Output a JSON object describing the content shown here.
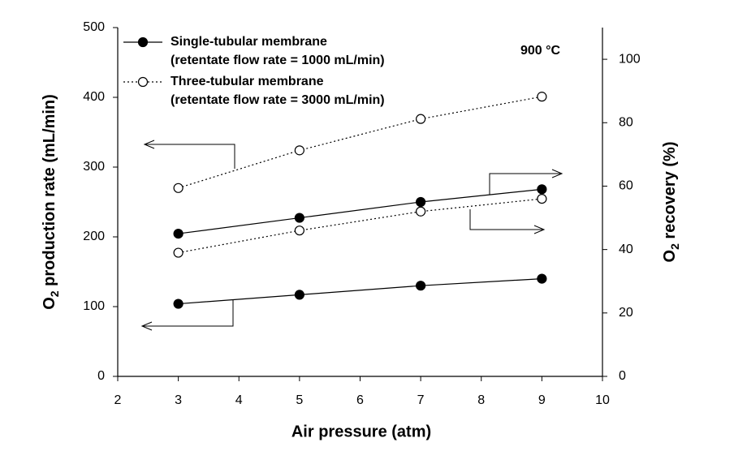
{
  "chart_data": {
    "type": "line",
    "x": [
      3,
      5,
      7,
      9
    ],
    "xlim": [
      2,
      10
    ],
    "xticks": [
      2,
      3,
      4,
      5,
      6,
      7,
      8,
      9,
      10
    ],
    "ylim": [
      0,
      500
    ],
    "yticks": [
      0,
      100,
      200,
      300,
      400,
      500
    ],
    "y2lim": [
      0,
      110
    ],
    "y2ticks": [
      0,
      20,
      40,
      60,
      80,
      100
    ],
    "x_label": "Air pressure (atm)",
    "y_label": {
      "main": "O",
      "sub": "2",
      "rest": " production rate (mL/min)"
    },
    "y2_label": {
      "main": "O",
      "sub": "2",
      "rest": " recovery (%)"
    },
    "annotation": "900 °C",
    "legend": "upper left",
    "series": [
      {
        "name": "Single-tubular membrane",
        "legend_note": "(retentate flow rate = 1000 mL/min)",
        "color": "#000000",
        "marker": "filled",
        "line_style": "solid",
        "values": [
          104,
          117,
          130,
          140
        ]
      },
      {
        "name": "Three-tubular membrane",
        "legend_note": "(retentate flow rate = 3000 mL/min)",
        "color": "#000000",
        "marker": "open",
        "line_style": "dotted",
        "values": [
          270,
          324,
          369,
          401
        ]
      },
      {
        "color": "#000000",
        "marker": "filled",
        "line_style": "solid",
        "axis": "y2",
        "values": [
          45,
          50,
          55,
          59
        ]
      },
      {
        "color": "#000000",
        "marker": "open",
        "line_style": "dotted",
        "axis": "y2",
        "values": [
          39,
          46,
          52,
          56
        ]
      }
    ]
  }
}
